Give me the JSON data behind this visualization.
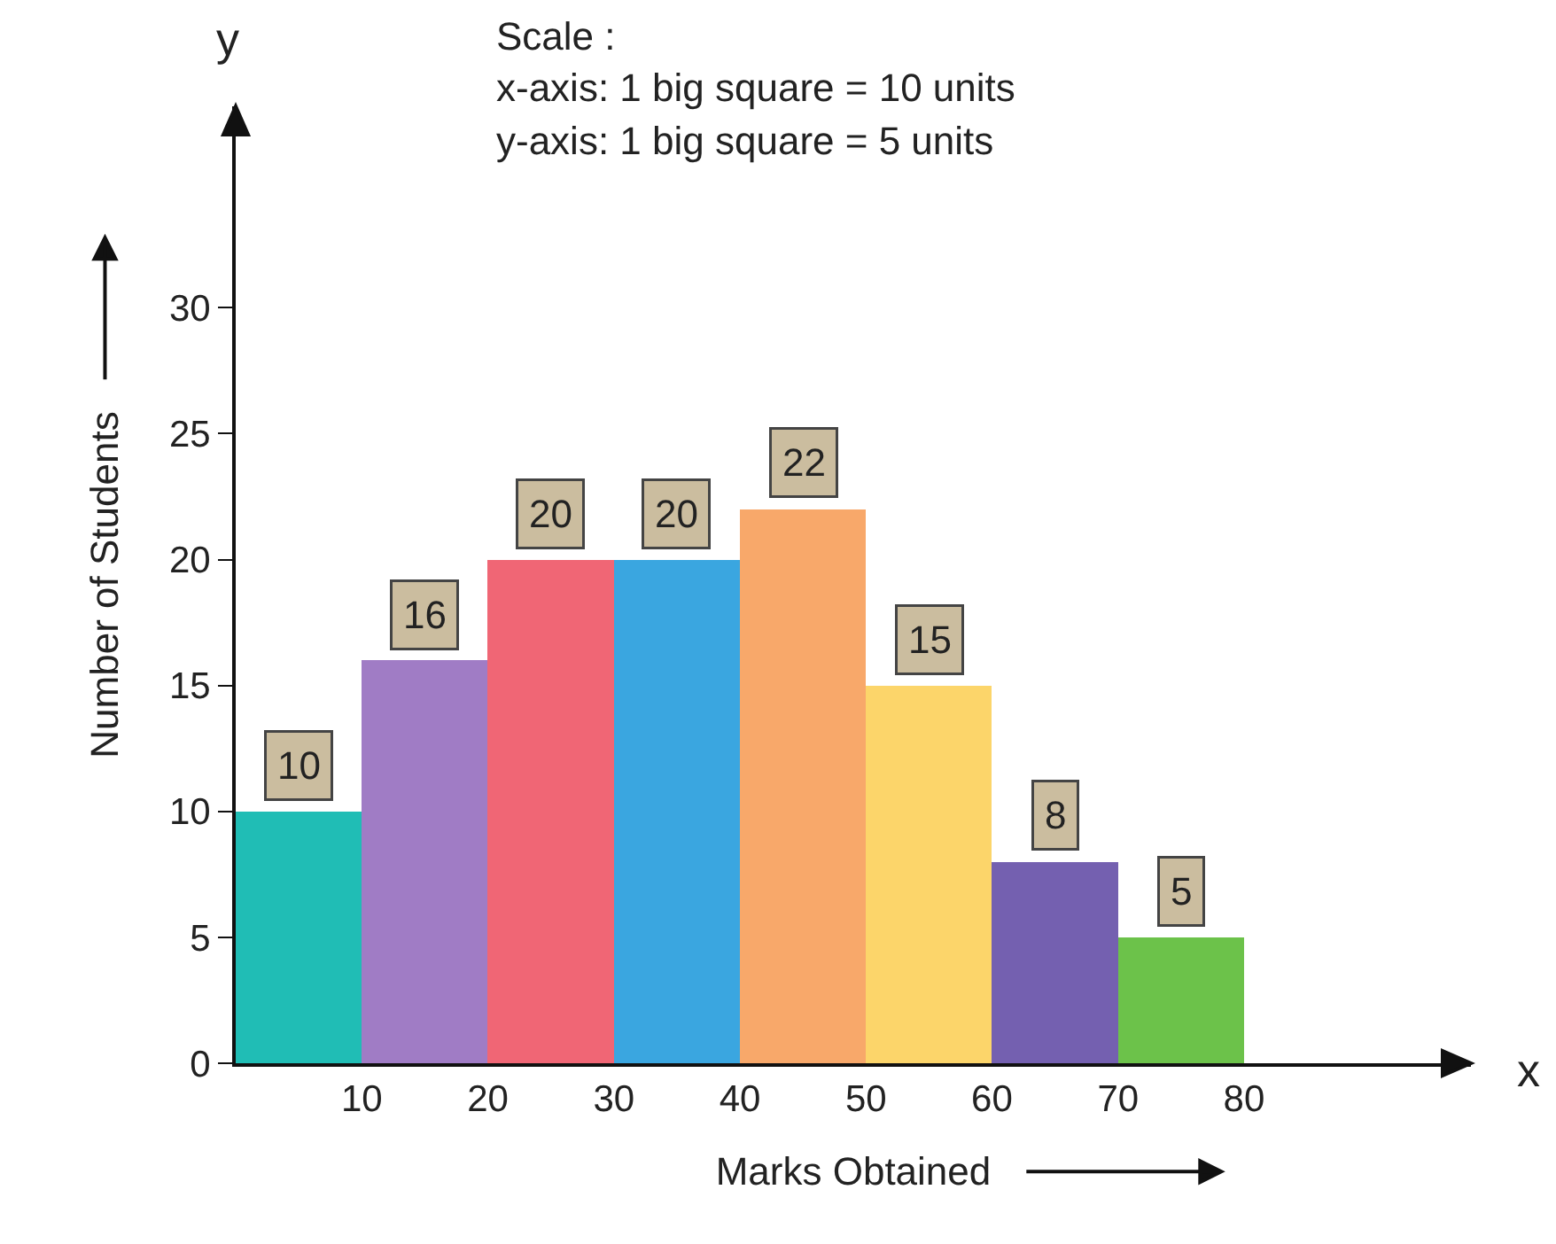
{
  "chart_data": {
    "type": "histogram",
    "xlabel": "Marks Obtained",
    "ylabel": "Number of Students",
    "annotations": [
      "Scale :",
      "x-axis: 1 big square = 10 units",
      "y-axis: 1 big square = 5 units",
      "y",
      "x"
    ],
    "bins": [
      0,
      10,
      20,
      30,
      40,
      50,
      60,
      70,
      80
    ],
    "values": [
      10,
      16,
      20,
      20,
      22,
      15,
      8,
      5
    ],
    "colors": [
      "#20bdb5",
      "#a07cc5",
      "#f06675",
      "#3aa6e0",
      "#f8a86a",
      "#fcd56a",
      "#7460b0",
      "#6cc24a"
    ],
    "data_labels": true,
    "xlim": [
      0,
      98
    ],
    "xticks": [
      10,
      20,
      30,
      40,
      50,
      60,
      70,
      80
    ],
    "ylim": [
      0,
      38
    ],
    "yticks": [
      0,
      5,
      10,
      15,
      20,
      25,
      30
    ],
    "grid": false
  }
}
